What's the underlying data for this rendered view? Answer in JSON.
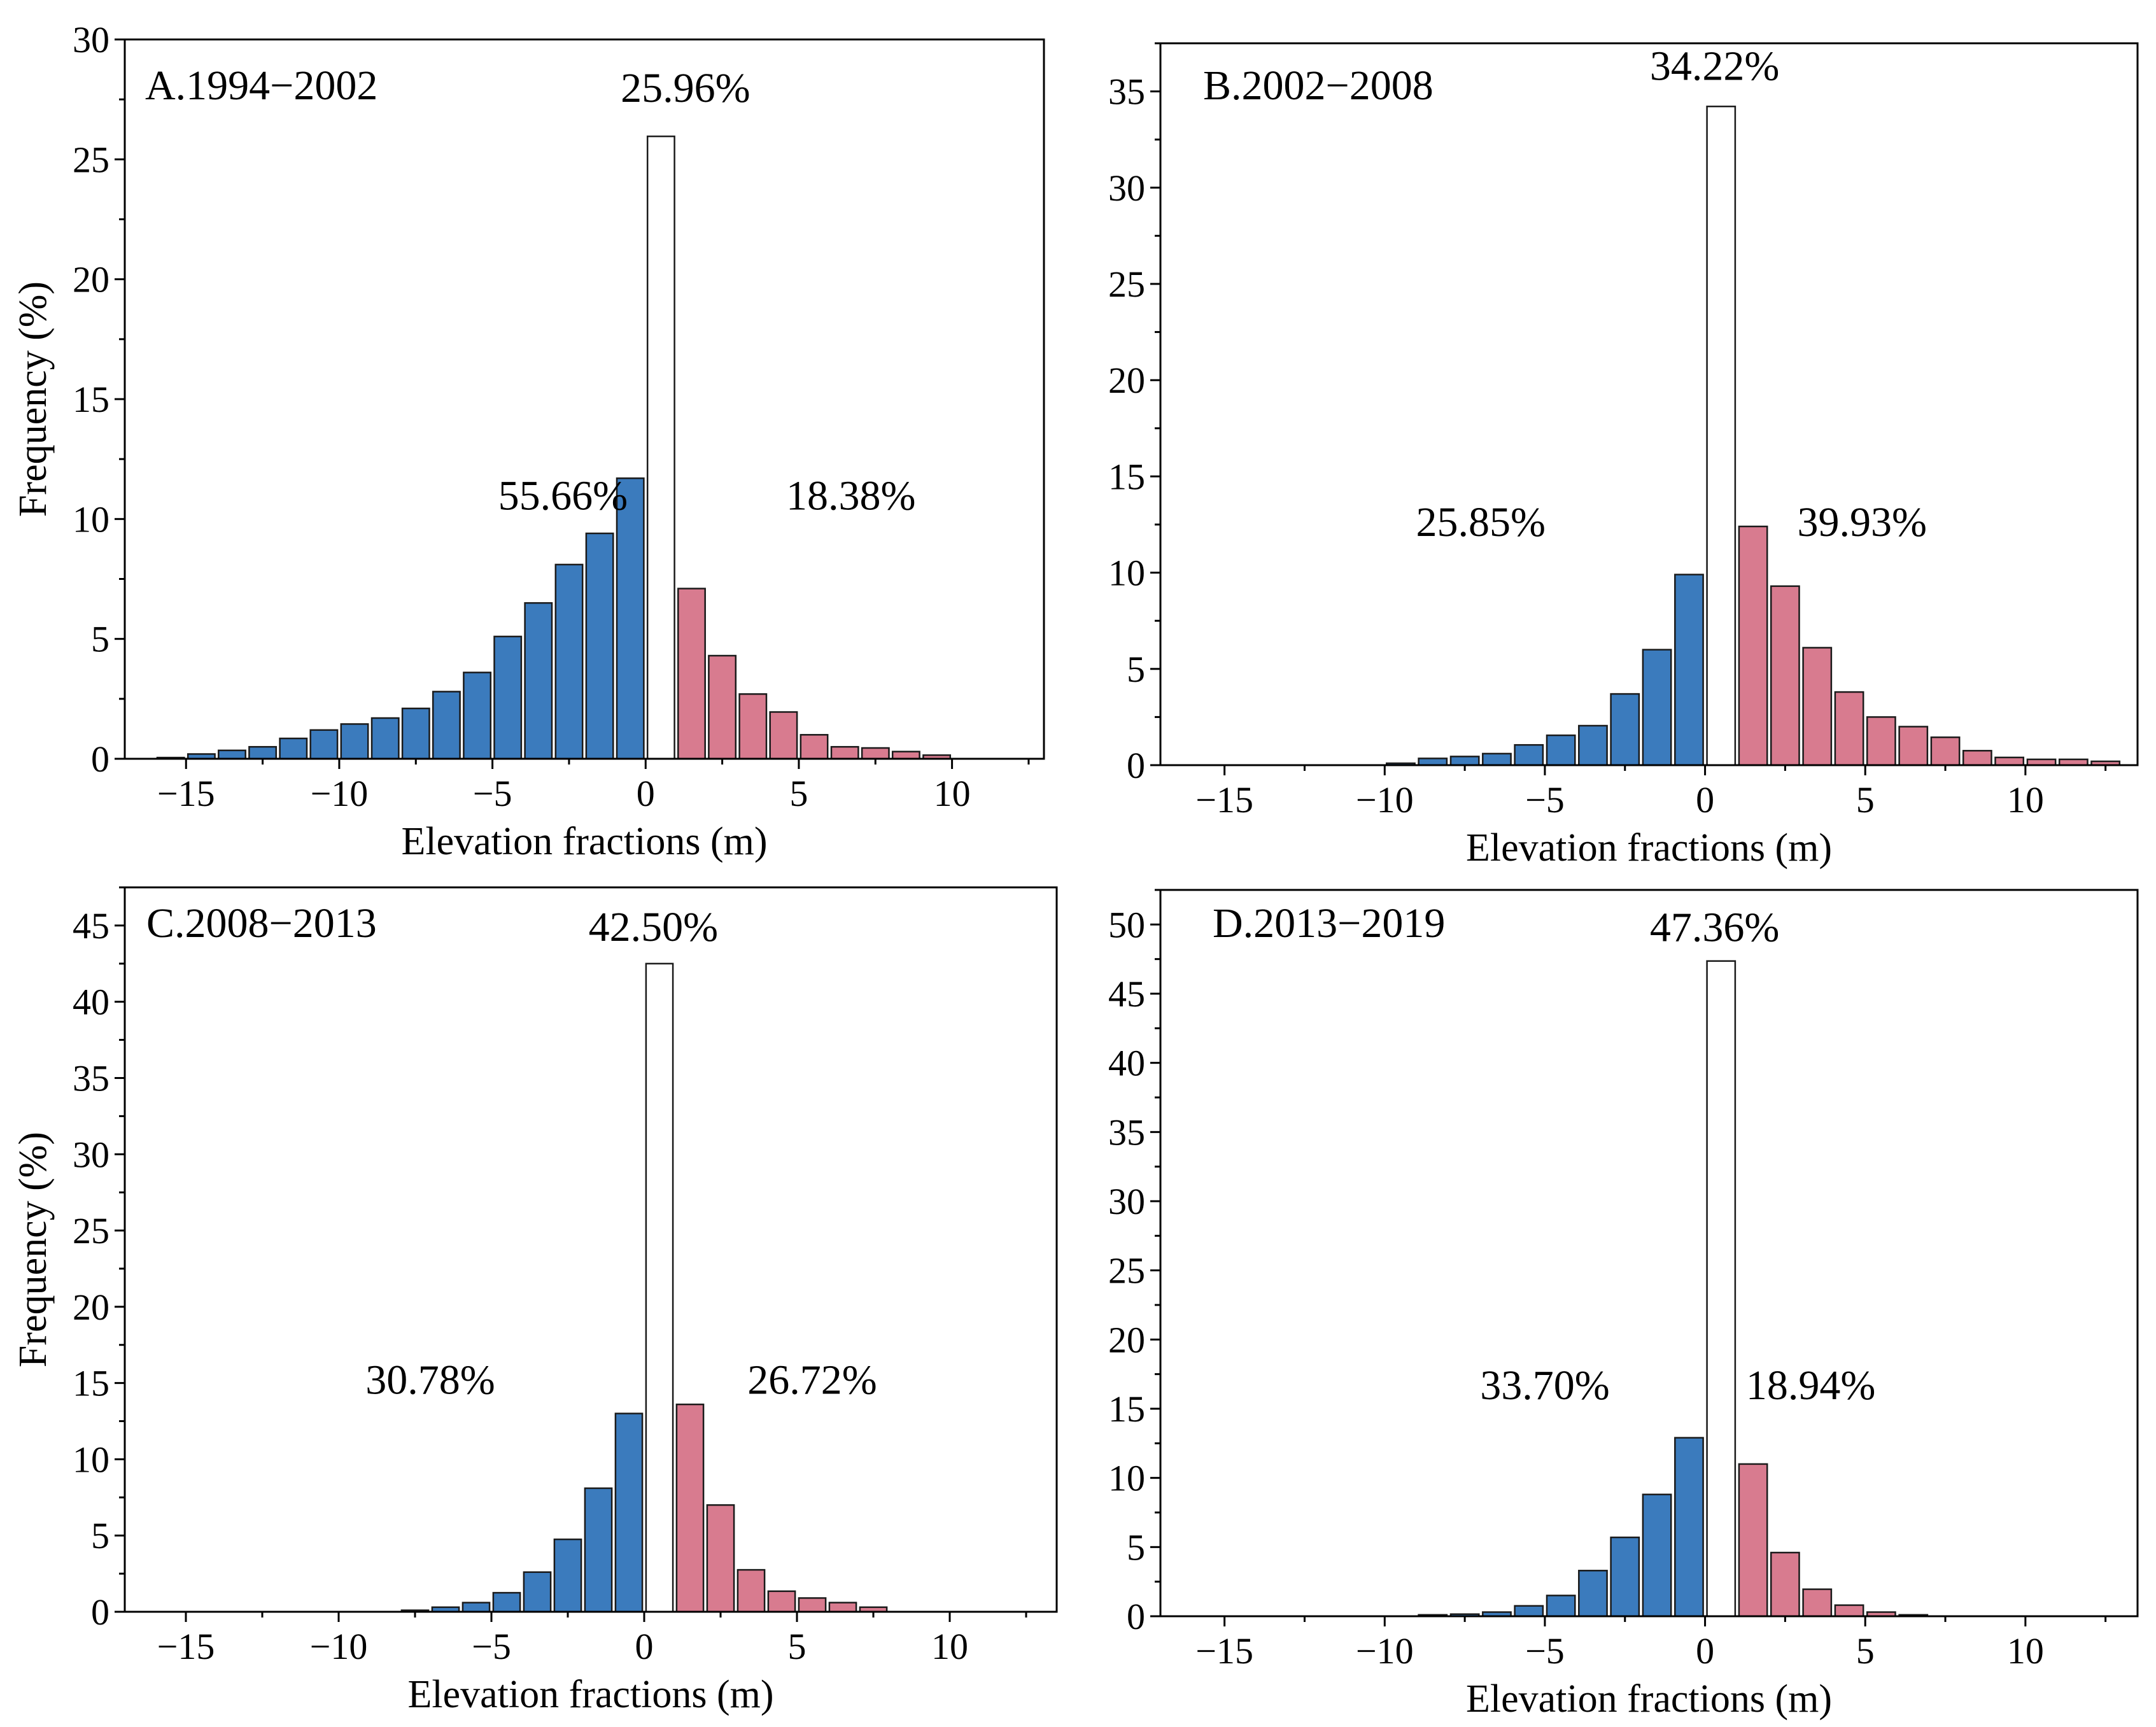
{
  "figure": {
    "colors": {
      "loss": "#3b7bbd",
      "gain": "#d87b8f",
      "center": "#ffffff"
    }
  },
  "chart_data": [
    {
      "type": "bar",
      "panel_label": "A.1994−2002",
      "xlabel": "Elevation fractions (m)",
      "ylabel": "Frequency (%)",
      "xlim": [
        -17,
        13
      ],
      "ylim": [
        0,
        30
      ],
      "xticks": [
        -15,
        -10,
        -5,
        0,
        5,
        10
      ],
      "xtick_labels": [
        "−15",
        "−10",
        "−5",
        "0",
        "5",
        "10"
      ],
      "yticks": [
        0,
        5,
        10,
        15,
        20,
        25,
        30
      ],
      "ytick_labels": [
        "0",
        "5",
        "10",
        "15",
        "20",
        "25",
        "30"
      ],
      "bin_centers": [
        -15.5,
        -14.5,
        -13.5,
        -12.5,
        -11.5,
        -10.5,
        -9.5,
        -8.5,
        -7.5,
        -6.5,
        -5.5,
        -4.5,
        -3.5,
        -2.5,
        -1.5,
        -0.5,
        0.5,
        1.5,
        2.5,
        3.5,
        4.5,
        5.5,
        6.5,
        7.5,
        8.5,
        9.5
      ],
      "values": [
        0.05,
        0.2,
        0.35,
        0.5,
        0.85,
        1.2,
        1.45,
        1.7,
        2.1,
        2.8,
        3.6,
        5.1,
        6.5,
        8.1,
        9.4,
        11.7,
        25.96,
        7.1,
        4.3,
        2.7,
        1.95,
        1.0,
        0.5,
        0.45,
        0.3,
        0.15
      ],
      "bin_type": [
        "loss",
        "loss",
        "loss",
        "loss",
        "loss",
        "loss",
        "loss",
        "loss",
        "loss",
        "loss",
        "loss",
        "loss",
        "loss",
        "loss",
        "loss",
        "loss",
        "center",
        "gain",
        "gain",
        "gain",
        "gain",
        "gain",
        "gain",
        "gain",
        "gain",
        "gain"
      ],
      "annotations": {
        "center": {
          "text": "25.96%"
        },
        "loss": {
          "text": "55.66%"
        },
        "gain": {
          "text": "18.38%"
        }
      }
    },
    {
      "type": "bar",
      "panel_label": "B.2002−2008",
      "xlabel": "Elevation fractions (m)",
      "ylabel": "",
      "xlim": [
        -17,
        13.5
      ],
      "ylim": [
        0,
        37.5
      ],
      "xticks": [
        -15,
        -10,
        -5,
        0,
        5,
        10
      ],
      "xtick_labels": [
        "−15",
        "−10",
        "−5",
        "0",
        "5",
        "10"
      ],
      "yticks": [
        0,
        5,
        10,
        15,
        20,
        25,
        30,
        35
      ],
      "ytick_labels": [
        "0",
        "5",
        "10",
        "15",
        "20",
        "25",
        "30",
        "35"
      ],
      "bin_centers": [
        -9.5,
        -8.5,
        -7.5,
        -6.5,
        -5.5,
        -4.5,
        -3.5,
        -2.5,
        -1.5,
        -0.5,
        0.5,
        1.5,
        2.5,
        3.5,
        4.5,
        5.5,
        6.5,
        7.5,
        8.5,
        9.5,
        10.5,
        11.5,
        12.5
      ],
      "values": [
        0.1,
        0.35,
        0.45,
        0.6,
        1.05,
        1.55,
        2.05,
        3.7,
        6.0,
        9.9,
        34.22,
        12.4,
        9.3,
        6.1,
        3.8,
        2.5,
        2.0,
        1.45,
        0.75,
        0.4,
        0.3,
        0.3,
        0.2
      ],
      "bin_type": [
        "loss",
        "loss",
        "loss",
        "loss",
        "loss",
        "loss",
        "loss",
        "loss",
        "loss",
        "loss",
        "center",
        "gain",
        "gain",
        "gain",
        "gain",
        "gain",
        "gain",
        "gain",
        "gain",
        "gain",
        "gain",
        "gain",
        "gain"
      ],
      "annotations": {
        "center": {
          "text": "34.22%"
        },
        "loss": {
          "text": "25.85%"
        },
        "gain": {
          "text": "39.93%"
        }
      }
    },
    {
      "type": "bar",
      "panel_label": "C.2008−2013",
      "xlabel": "Elevation fractions (m)",
      "ylabel": "Frequency (%)",
      "xlim": [
        -17,
        13.5
      ],
      "ylim": [
        0,
        47.5
      ],
      "xticks": [
        -15,
        -10,
        -5,
        0,
        5,
        10
      ],
      "xtick_labels": [
        "−15",
        "−10",
        "−5",
        "0",
        "5",
        "10"
      ],
      "yticks": [
        0,
        5,
        10,
        15,
        20,
        25,
        30,
        35,
        40,
        45
      ],
      "ytick_labels": [
        "0",
        "5",
        "10",
        "15",
        "20",
        "25",
        "30",
        "35",
        "40",
        "45"
      ],
      "bin_centers": [
        -7.5,
        -6.5,
        -5.5,
        -4.5,
        -3.5,
        -2.5,
        -1.5,
        -0.5,
        0.5,
        1.5,
        2.5,
        3.5,
        4.5,
        5.5,
        6.5,
        7.5
      ],
      "values": [
        0.1,
        0.3,
        0.6,
        1.25,
        2.6,
        4.75,
        8.1,
        13.0,
        42.5,
        13.6,
        7.0,
        2.75,
        1.35,
        0.9,
        0.6,
        0.3
      ],
      "bin_type": [
        "loss",
        "loss",
        "loss",
        "loss",
        "loss",
        "loss",
        "loss",
        "loss",
        "center",
        "gain",
        "gain",
        "gain",
        "gain",
        "gain",
        "gain",
        "gain"
      ],
      "annotations": {
        "center": {
          "text": "42.50%"
        },
        "loss": {
          "text": "30.78%"
        },
        "gain": {
          "text": "26.72%"
        }
      }
    },
    {
      "type": "bar",
      "panel_label": "D.2013−2019",
      "xlabel": "Elevation fractions (m)",
      "ylabel": "",
      "xlim": [
        -17,
        13.5
      ],
      "ylim": [
        0,
        52.5
      ],
      "xticks": [
        -15,
        -10,
        -5,
        0,
        5,
        10
      ],
      "xtick_labels": [
        "−15",
        "−10",
        "−5",
        "0",
        "5",
        "10"
      ],
      "yticks": [
        0,
        5,
        10,
        15,
        20,
        25,
        30,
        35,
        40,
        45,
        50
      ],
      "ytick_labels": [
        "0",
        "5",
        "10",
        "15",
        "20",
        "25",
        "30",
        "35",
        "40",
        "45",
        "50"
      ],
      "bin_centers": [
        -8.5,
        -7.5,
        -6.5,
        -5.5,
        -4.5,
        -3.5,
        -2.5,
        -1.5,
        -0.5,
        0.5,
        1.5,
        2.5,
        3.5,
        4.5,
        5.5,
        6.5
      ],
      "values": [
        0.1,
        0.15,
        0.3,
        0.75,
        1.5,
        3.3,
        5.7,
        8.8,
        12.9,
        47.36,
        11.0,
        4.6,
        1.95,
        0.8,
        0.3,
        0.1
      ],
      "bin_type": [
        "loss",
        "loss",
        "loss",
        "loss",
        "loss",
        "loss",
        "loss",
        "loss",
        "loss",
        "center",
        "gain",
        "gain",
        "gain",
        "gain",
        "gain",
        "gain"
      ],
      "annotations": {
        "center": {
          "text": "47.36%"
        },
        "loss": {
          "text": "33.70%"
        },
        "gain": {
          "text": "18.94%"
        }
      }
    }
  ]
}
